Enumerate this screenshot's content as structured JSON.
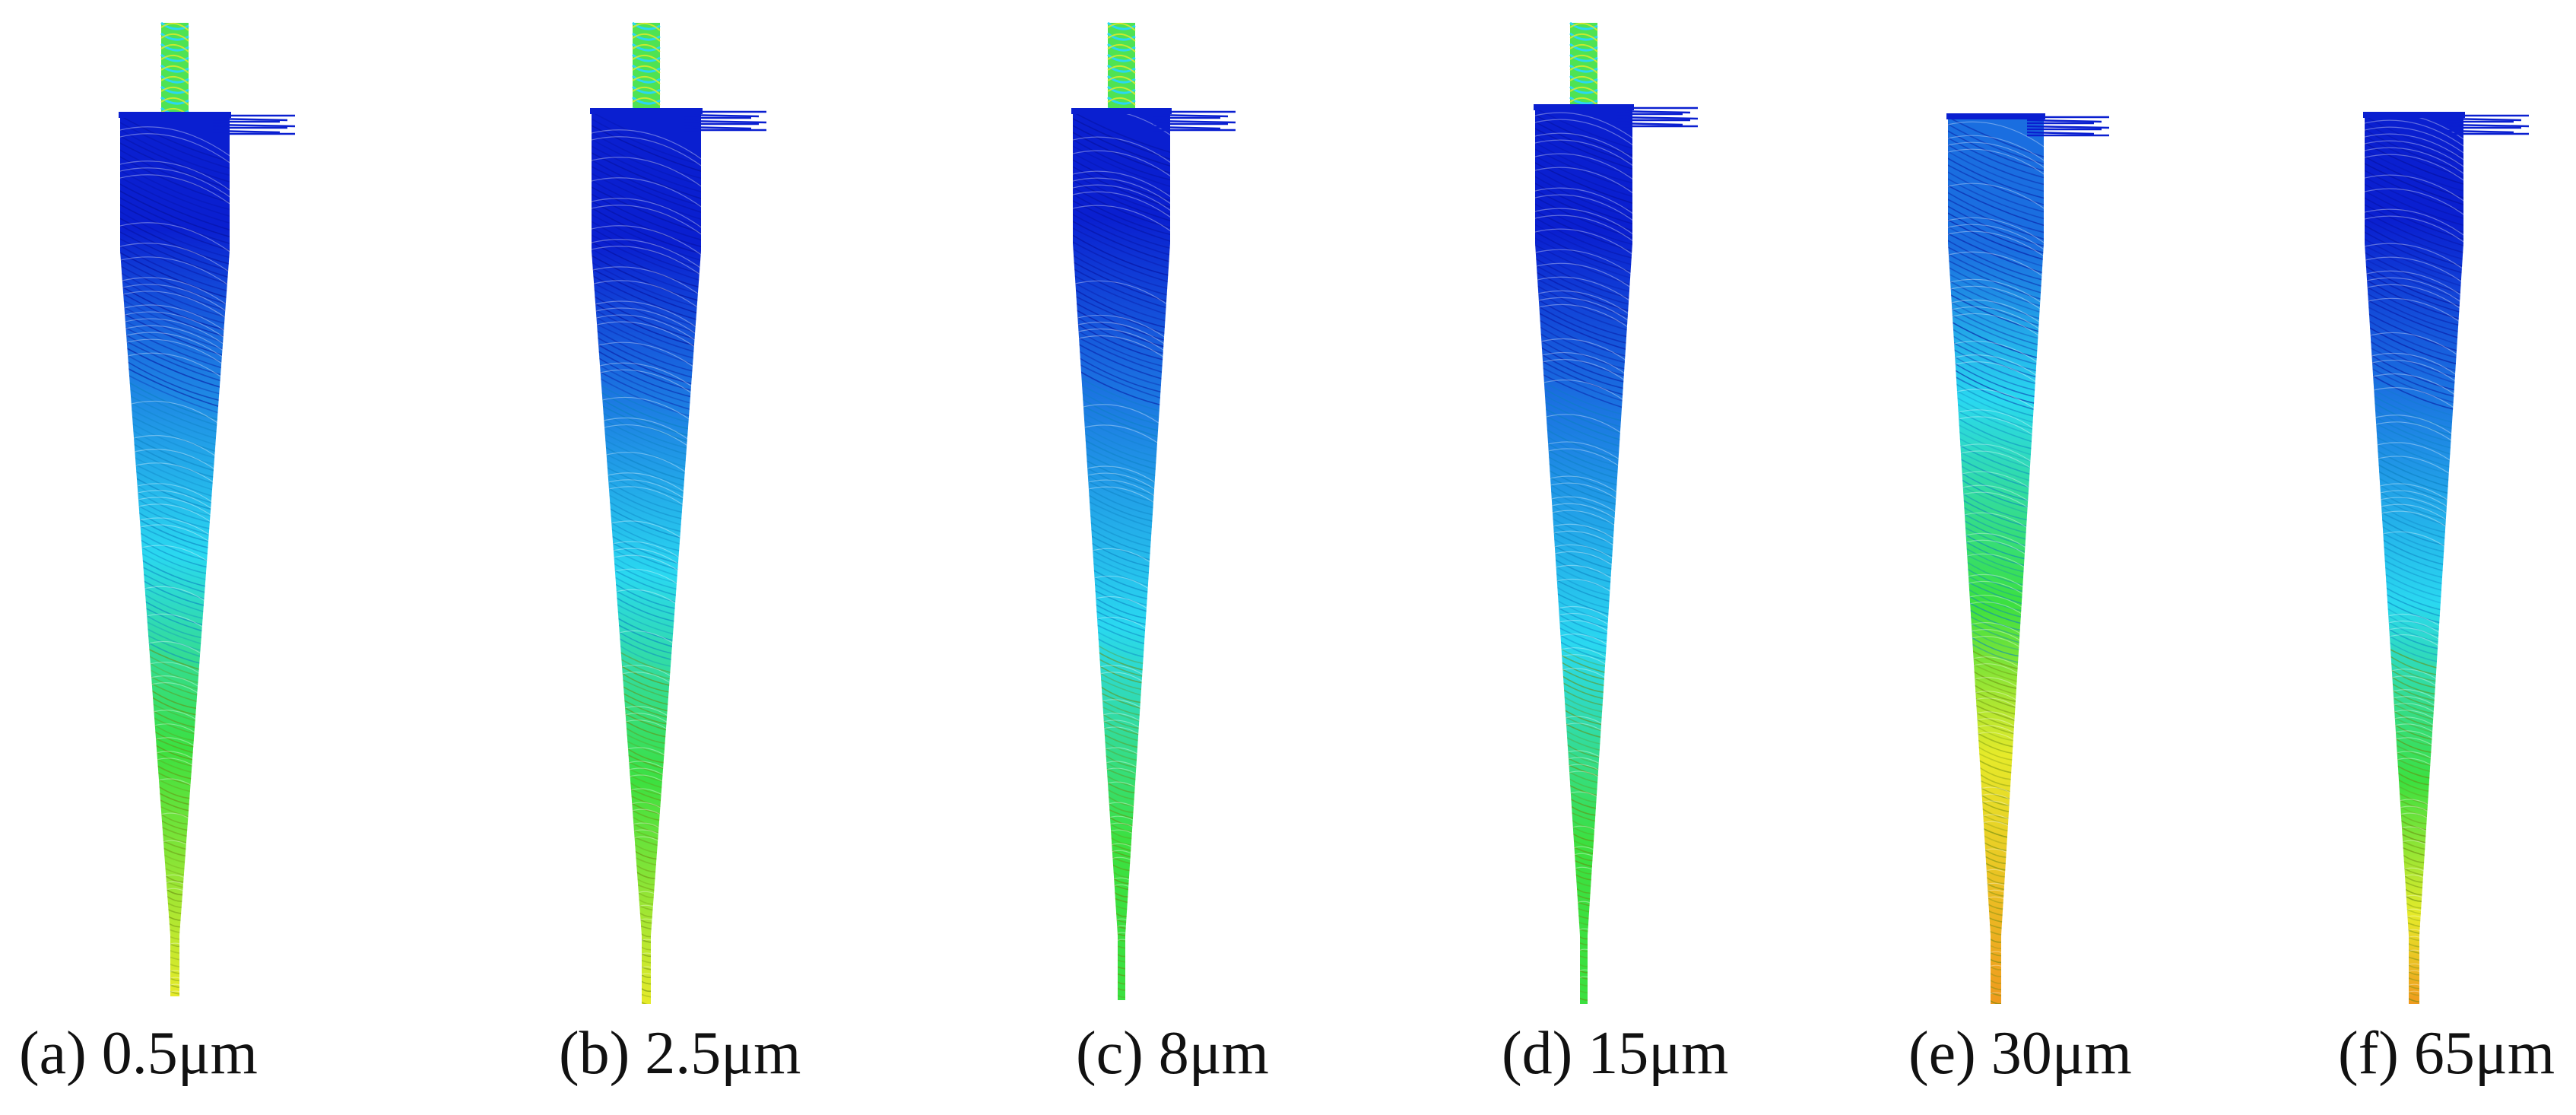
{
  "panels": [
    {
      "label": "(a) 0.5μm",
      "diameter_um": 0.5
    },
    {
      "label": "(b) 2.5μm",
      "diameter_um": 2.5
    },
    {
      "label": "(c) 8μm",
      "diameter_um": 8
    },
    {
      "label": "(d) 15μm",
      "diameter_um": 15
    },
    {
      "label": "(e) 30μm",
      "diameter_um": 30
    },
    {
      "label": "(f) 65μm",
      "diameter_um": 65
    }
  ],
  "colors": {
    "blue": "#0a1fd0",
    "mid_blue": "#1a6ee0",
    "cyan": "#2ad8f0",
    "green": "#3ce040",
    "yellow": "#e6ea2a",
    "orange": "#ef9a1e",
    "caption_text": "#111111"
  }
}
